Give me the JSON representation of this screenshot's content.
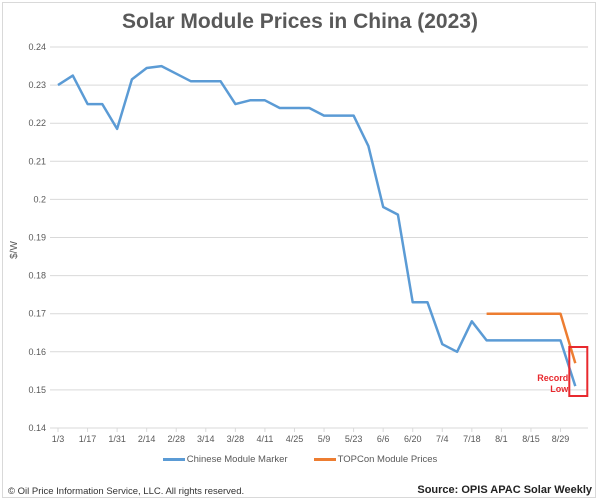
{
  "chart_data": {
    "type": "line",
    "title": "Solar Module Prices in China (2023)",
    "xlabel": "",
    "ylabel": "$/W",
    "ylim": [
      0.14,
      0.24
    ],
    "yticks": [
      "0.14",
      "0.15",
      "0.16",
      "0.17",
      "0.18",
      "0.19",
      "0.2",
      "0.21",
      "0.22",
      "0.23",
      "0.24"
    ],
    "xtick_labels": [
      "1/3",
      "1/17",
      "1/31",
      "2/14",
      "2/28",
      "3/14",
      "3/28",
      "4/11",
      "4/25",
      "5/9",
      "5/23",
      "6/6",
      "6/20",
      "7/4",
      "7/18",
      "8/1",
      "8/15",
      "8/29"
    ],
    "x": [
      "1/3",
      "1/10",
      "1/17",
      "1/24",
      "1/31",
      "2/7",
      "2/14",
      "2/21",
      "2/28",
      "3/7",
      "3/14",
      "3/21",
      "3/28",
      "4/4",
      "4/11",
      "4/18",
      "4/25",
      "5/2",
      "5/9",
      "5/16",
      "5/23",
      "5/30",
      "6/6",
      "6/13",
      "6/20",
      "6/27",
      "7/4",
      "7/11",
      "7/18",
      "7/25",
      "8/1",
      "8/8",
      "8/15",
      "8/22",
      "8/29",
      "9/5"
    ],
    "grid": true,
    "legend_position": "bottom",
    "series": [
      {
        "name": "Chinese Module Marker",
        "color": "#5b9bd5",
        "values": [
          0.23,
          0.2325,
          0.225,
          0.225,
          0.2185,
          0.2315,
          0.2345,
          0.235,
          0.233,
          0.231,
          0.231,
          0.231,
          0.225,
          0.226,
          0.226,
          0.224,
          0.224,
          0.224,
          0.222,
          0.222,
          0.222,
          0.214,
          0.198,
          0.196,
          0.173,
          0.173,
          0.162,
          0.16,
          0.168,
          0.163,
          0.163,
          0.163,
          0.163,
          0.163,
          0.163,
          0.151
        ]
      },
      {
        "name": "TOPCon Module Prices",
        "color": "#ed7d31",
        "values": [
          null,
          null,
          null,
          null,
          null,
          null,
          null,
          null,
          null,
          null,
          null,
          null,
          null,
          null,
          null,
          null,
          null,
          null,
          null,
          null,
          null,
          null,
          null,
          null,
          null,
          null,
          null,
          null,
          null,
          0.17,
          0.17,
          0.17,
          0.17,
          0.17,
          0.17,
          0.157
        ]
      }
    ],
    "annotations": [
      {
        "text_line1": "Record",
        "text_line2": "Low",
        "color": "#e8292e",
        "target_index": 35
      }
    ]
  },
  "footer": {
    "copyright": "© Oil Price Information Service, LLC.  All rights reserved.",
    "source": "Source: OPIS APAC Solar Weekly"
  }
}
